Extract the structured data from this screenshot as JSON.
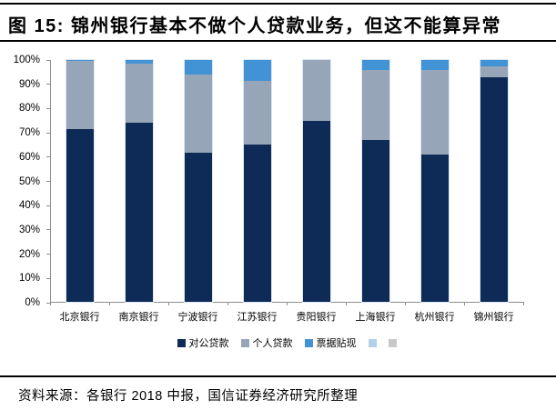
{
  "figure": {
    "title": "图 15: 锦州银行基本不做个人贷款业务，但这不能算异常",
    "source": "资料来源：各银行 2018 中报，国信证券经济研究所整理"
  },
  "chart_data": {
    "type": "bar",
    "stacked": true,
    "unit": "percent",
    "title": "图 15: 锦州银行基本不做个人贷款业务，但这不能算异常",
    "categories": [
      "北京银行",
      "南京银行",
      "宁波银行",
      "江苏银行",
      "贵阳银行",
      "上海银行",
      "杭州银行",
      "锦州银行"
    ],
    "series": [
      {
        "name": "对公贷款",
        "color": "#0d2b56",
        "values": [
          71.5,
          74,
          61.5,
          65,
          75,
          67,
          61,
          93
        ]
      },
      {
        "name": "个人贷款",
        "color": "#96a5b8",
        "values": [
          28,
          24.5,
          32.5,
          26.5,
          25,
          29,
          35,
          4.5
        ]
      },
      {
        "name": "票据贴现",
        "color": "#4292d6",
        "values": [
          0.5,
          1.5,
          6,
          8.5,
          0,
          4,
          4,
          2.5
        ]
      },
      {
        "name": "",
        "color": "#b3cfe9",
        "values": [
          0,
          0,
          0,
          0,
          0,
          0,
          0,
          0
        ]
      },
      {
        "name": "",
        "color": "#c8c8c8",
        "values": [
          0,
          0,
          0,
          0,
          0,
          0,
          0,
          0
        ]
      }
    ],
    "ylim": [
      0,
      100
    ],
    "y_ticks": [
      "0%",
      "10%",
      "20%",
      "30%",
      "40%",
      "50%",
      "60%",
      "70%",
      "80%",
      "90%",
      "100%"
    ],
    "grid": false,
    "legend_position": "bottom",
    "axis_color": "#8e8e8e"
  }
}
